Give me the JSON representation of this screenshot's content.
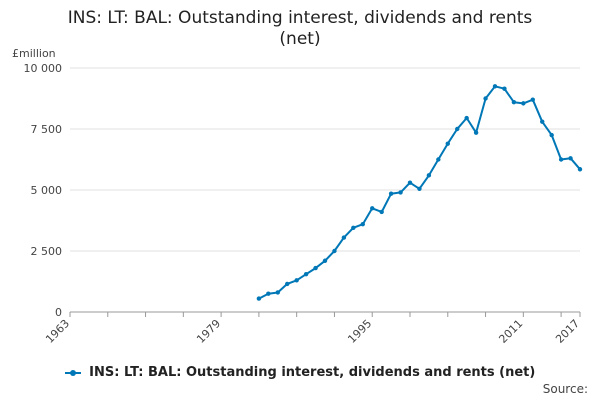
{
  "title_line1": "INS: LT: BAL: Outstanding interest, dividends and rents",
  "title_line2": "(net)",
  "source_label": "Source:",
  "colors": {
    "series": "#0077b6",
    "grid": "#e0e0e0",
    "axis": "#999999",
    "text": "#444444"
  },
  "chart_data": {
    "type": "line",
    "title": "INS: LT: BAL: Outstanding interest, dividends and rents (net)",
    "ylabel": "£million",
    "xlabel": "",
    "xlim": [
      1963,
      2017
    ],
    "ylim": [
      0,
      10000
    ],
    "x_ticks": [
      1963,
      1979,
      1995,
      2011,
      2017
    ],
    "y_ticks": [
      0,
      2500,
      5000,
      7500,
      10000
    ],
    "y_tick_labels": [
      "0",
      "2 500",
      "5 000",
      "7 500",
      "10 000"
    ],
    "grid": true,
    "legend": "bottom",
    "series": [
      {
        "name": "INS: LT: BAL: Outstanding interest, dividends and rents (net)",
        "x": [
          1983,
          1984,
          1985,
          1986,
          1987,
          1988,
          1989,
          1990,
          1991,
          1992,
          1993,
          1994,
          1995,
          1996,
          1997,
          1998,
          1999,
          2000,
          2001,
          2002,
          2003,
          2004,
          2005,
          2006,
          2007,
          2008,
          2009,
          2010,
          2011,
          2012,
          2013,
          2014,
          2015,
          2016,
          2017
        ],
        "values": [
          550,
          750,
          800,
          1150,
          1300,
          1550,
          1800,
          2100,
          2500,
          3050,
          3450,
          3600,
          4250,
          4100,
          4850,
          4900,
          5300,
          5050,
          5600,
          6250,
          6900,
          7500,
          7950,
          7350,
          8750,
          9250,
          9150,
          8600,
          8550,
          8700,
          7800,
          7250,
          6250,
          6300,
          5850
        ]
      }
    ]
  }
}
